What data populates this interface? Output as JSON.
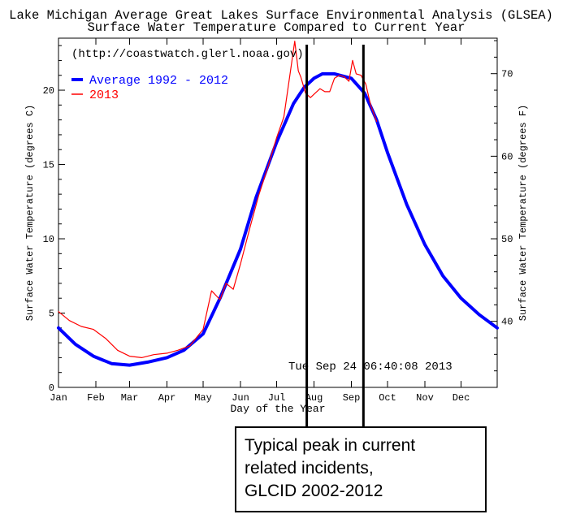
{
  "chart_data": {
    "type": "line",
    "title": "Lake Michigan Average Great Lakes Surface Environmental Analysis (GLSEA)",
    "subtitle": "Surface Water Temperature Compared to Current Year",
    "source_url": "(http://coastwatch.glerl.noaa.gov)",
    "timestamp": "Tue Sep 24 06:40:08 2013",
    "xlabel": "Day of the Year",
    "ylabel": "Surface Water Temperature (degrees C)",
    "ylabel_right": "Surface Water Temperature (degrees F)",
    "xlim": [
      1,
      365
    ],
    "ylim": [
      0,
      23.5
    ],
    "x_ticks": [
      {
        "label": "Jan",
        "day": 1
      },
      {
        "label": "Feb",
        "day": 32
      },
      {
        "label": "Mar",
        "day": 60
      },
      {
        "label": "Apr",
        "day": 91
      },
      {
        "label": "May",
        "day": 121
      },
      {
        "label": "Jun",
        "day": 152
      },
      {
        "label": "Jul",
        "day": 182
      },
      {
        "label": "Aug",
        "day": 213
      },
      {
        "label": "Sep",
        "day": 244
      },
      {
        "label": "Oct",
        "day": 274
      },
      {
        "label": "Nov",
        "day": 305
      },
      {
        "label": "Dec",
        "day": 335
      }
    ],
    "y_ticks": [
      0,
      5,
      10,
      15,
      20
    ],
    "y_ticks_right": [
      40,
      50,
      60,
      70
    ],
    "legend_position": "top-left",
    "series": [
      {
        "name": "Average 1992 - 2012",
        "color": "#0000ff",
        "x": [
          1,
          15,
          30,
          45,
          60,
          75,
          91,
          105,
          121,
          135,
          152,
          165,
          182,
          196,
          205,
          213,
          220,
          230,
          244,
          255,
          265,
          274,
          290,
          305,
          320,
          335,
          350,
          365
        ],
        "y": [
          4.0,
          2.9,
          2.1,
          1.6,
          1.5,
          1.7,
          2.0,
          2.5,
          3.6,
          6.0,
          9.3,
          12.8,
          16.5,
          19.1,
          20.2,
          20.8,
          21.1,
          21.1,
          20.8,
          19.8,
          18.0,
          15.8,
          12.3,
          9.6,
          7.5,
          6.0,
          4.9,
          4.0
        ]
      },
      {
        "name": "2013",
        "color": "#ff0000",
        "x": [
          1,
          10,
          20,
          30,
          40,
          50,
          60,
          70,
          80,
          91,
          100,
          110,
          121,
          128,
          135,
          140,
          146,
          152,
          160,
          167,
          175,
          182,
          188,
          193,
          197,
          200,
          202,
          206,
          210,
          214,
          218,
          222,
          226,
          230,
          234,
          238,
          242,
          245,
          248,
          252,
          256,
          260,
          265
        ],
        "y": [
          5.1,
          4.5,
          4.1,
          3.9,
          3.3,
          2.5,
          2.1,
          2.0,
          2.2,
          2.3,
          2.5,
          2.8,
          3.9,
          6.5,
          5.9,
          7.0,
          6.6,
          8.3,
          10.8,
          12.9,
          14.9,
          16.8,
          18.2,
          21.0,
          23.3,
          21.3,
          20.9,
          19.8,
          19.5,
          19.8,
          20.1,
          19.9,
          19.9,
          20.8,
          21.0,
          20.9,
          20.6,
          22.0,
          21.1,
          21.0,
          20.4,
          19.0,
          17.9
        ]
      }
    ],
    "marker_lines_days": [
      207,
      254
    ]
  },
  "callout": {
    "lines": [
      "Typical peak in current",
      "related incidents,",
      "GLCID 2002-2012"
    ]
  }
}
